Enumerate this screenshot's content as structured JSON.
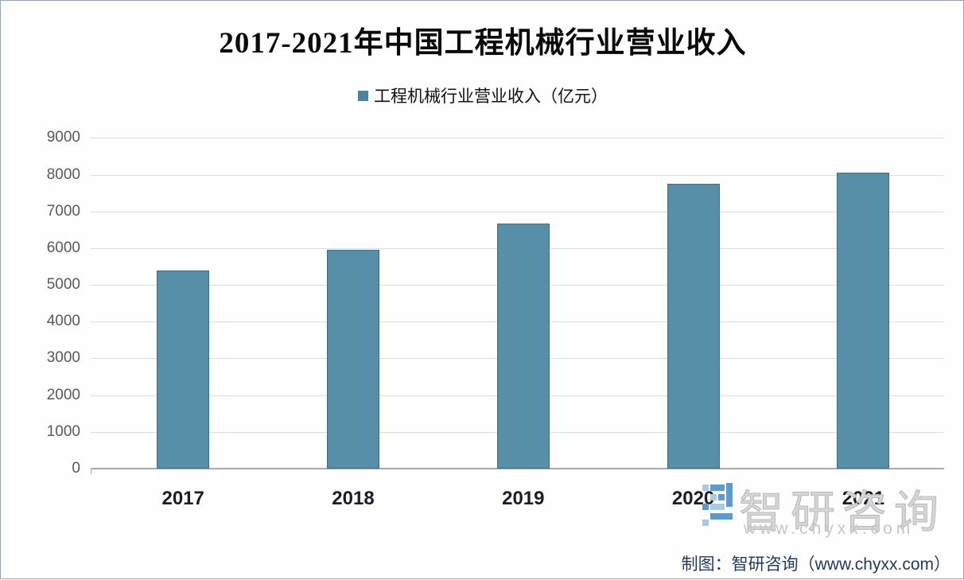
{
  "page": {
    "background": "#fefefe",
    "border_color": "#9aa0ac"
  },
  "header": {
    "title": "2017-2021年中国工程机械行业营业收入"
  },
  "legend": {
    "marker_color": "#4d83a1",
    "label": "工程机械行业营业收入（亿元）"
  },
  "chart_data": {
    "type": "bar",
    "title": "2017-2021年中国工程机械行业营业收入",
    "categories": [
      "2017",
      "2018",
      "2019",
      "2020",
      "2021"
    ],
    "series": [
      {
        "name": "工程机械行业营业收入（亿元）",
        "values": [
          5400,
          5960,
          6670,
          7750,
          8050
        ]
      }
    ],
    "xlabel": "",
    "ylabel": "",
    "ylim": [
      0,
      9000
    ],
    "ytick_step": 1000,
    "grid": true,
    "legend_position": "top",
    "bar_color": "#578ea8",
    "bar_border_color": "#3e6e87"
  },
  "watermark": {
    "logo_text": "智研咨询",
    "logo_url": "www.chyxx.com",
    "icon_color_light": "#a9c9e8",
    "icon_color_dark": "#5b9bd5"
  },
  "footer": {
    "credit": "制图：智研咨询（www.chyxx.com）"
  }
}
